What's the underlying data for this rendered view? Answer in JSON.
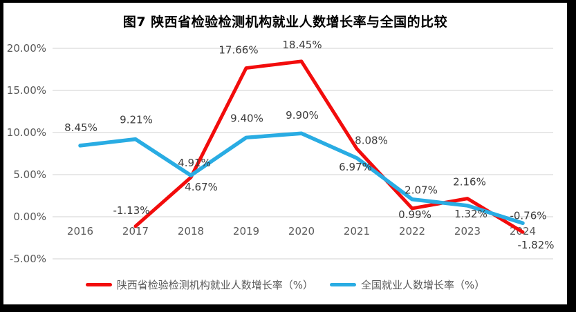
{
  "title": "图7 陕西省检验检测机构就业人数增长率与全国的比较",
  "chart_data": {
    "type": "line",
    "categories": [
      "2016",
      "2017",
      "2018",
      "2019",
      "2020",
      "2021",
      "2022",
      "2023",
      "2024"
    ],
    "series": [
      {
        "name": "陕西省检验检测机构就业人数增长率（%）",
        "color": "#f20c0c",
        "line_width": 5,
        "values": [
          null,
          -1.13,
          4.67,
          17.66,
          18.45,
          8.08,
          0.99,
          2.16,
          -1.82
        ],
        "labels": [
          "",
          "-1.13%",
          "4.67%",
          "17.66%",
          "18.45%",
          "8.08%",
          "0.99%",
          "2.16%",
          "-1.82%"
        ],
        "label_offsets": [
          [
            0,
            0
          ],
          [
            -6,
            -18
          ],
          [
            15,
            19
          ],
          [
            -11,
            -21
          ],
          [
            1,
            -19
          ],
          [
            21,
            -7
          ],
          [
            4,
            14
          ],
          [
            3,
            -19
          ],
          [
            19,
            24
          ]
        ]
      },
      {
        "name": "全国就业人数增长率（%）",
        "color": "#29ace3",
        "line_width": 5.5,
        "values": [
          8.45,
          9.21,
          4.91,
          9.4,
          9.9,
          6.97,
          2.07,
          1.32,
          -0.76
        ],
        "labels": [
          "8.45%",
          "9.21%",
          "4.91%",
          "9.40%",
          "9.90%",
          "6.97%",
          "2.07%",
          "1.32%",
          "-0.76%"
        ],
        "label_offsets": [
          [
            1,
            -21
          ],
          [
            1,
            -23
          ],
          [
            5,
            -13
          ],
          [
            1,
            -23
          ],
          [
            1,
            -21
          ],
          [
            -2,
            18
          ],
          [
            13,
            -8
          ],
          [
            5,
            17
          ],
          [
            8,
            -6
          ]
        ]
      }
    ],
    "yticks": {
      "values": [
        20,
        15,
        10,
        5,
        0,
        -5
      ],
      "labels": [
        "20.00%",
        "15.00%",
        "10.00%",
        "5.00%",
        "0.00%",
        "-5.00%"
      ]
    },
    "ylim": [
      -5,
      20
    ],
    "grid": true,
    "legend_position": "bottom",
    "colors": {
      "gridline": "#d9d9d9",
      "axis_label": "#595959",
      "data_label": "#3b3b3b",
      "title": "#000000",
      "frame_border": "#000000",
      "background": "#ffffff"
    }
  }
}
